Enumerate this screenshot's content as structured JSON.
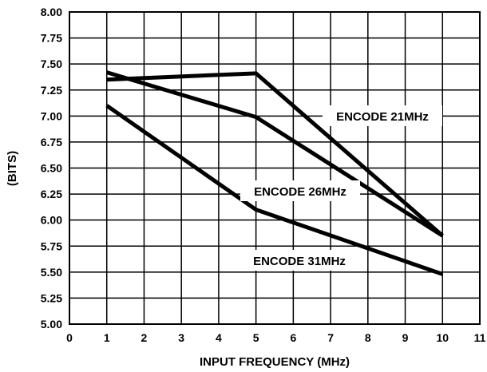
{
  "chart_data": {
    "type": "line",
    "xlabel": "INPUT FREQUENCY (MHz)",
    "ylabel": "(BITS)",
    "xlim": [
      0,
      11
    ],
    "ylim": [
      5.0,
      8.0
    ],
    "x_ticks": [
      "0",
      "1",
      "2",
      "3",
      "4",
      "5",
      "6",
      "7",
      "8",
      "9",
      "10",
      "11"
    ],
    "y_ticks": [
      "5.00",
      "5.25",
      "5.50",
      "5.75",
      "6.00",
      "6.25",
      "6.50",
      "6.75",
      "7.00",
      "7.25",
      "7.50",
      "7.75",
      "8.00"
    ],
    "grid": true,
    "series": [
      {
        "name": "ENCODE 21MHz",
        "x": [
          1,
          5,
          10
        ],
        "y": [
          7.35,
          7.41,
          5.85
        ]
      },
      {
        "name": "ENCODE 26MHz",
        "x": [
          1,
          5,
          10
        ],
        "y": [
          7.42,
          6.99,
          5.85
        ]
      },
      {
        "name": "ENCODE 31MHz",
        "x": [
          1,
          5,
          10
        ],
        "y": [
          7.1,
          6.1,
          5.48
        ]
      }
    ]
  }
}
